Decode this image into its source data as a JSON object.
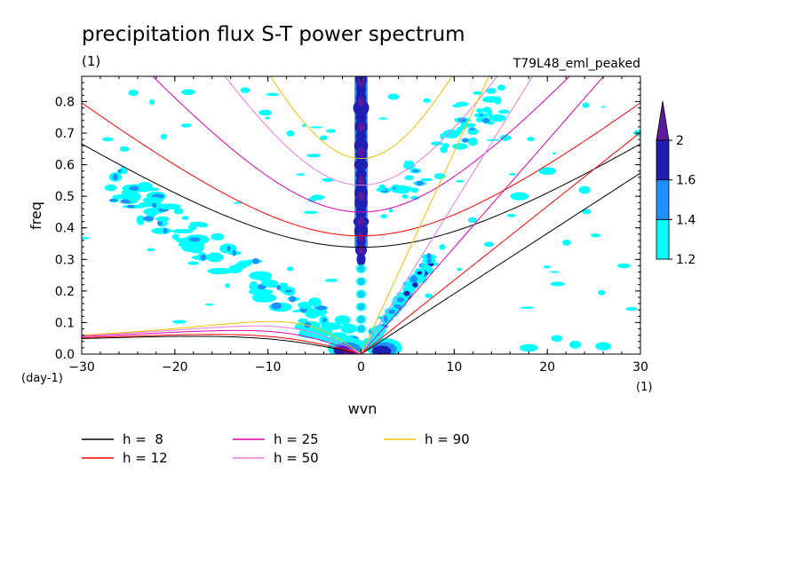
{
  "chart_data": {
    "type": "heatmap",
    "title": "precipitation flux S-T power spectrum",
    "units_left": "(1)",
    "units_right": "T79L48_eml_peaked",
    "xlabel": "wvn",
    "ylabel": "freq",
    "x_units": "(1)",
    "y_units": "(day-1)",
    "xlim": [
      -30,
      30
    ],
    "ylim": [
      0,
      0.88
    ],
    "x_ticks": [
      -30,
      -20,
      -10,
      0,
      10,
      20,
      30
    ],
    "x_tick_labels": [
      "−30",
      "−20",
      "−10",
      "0",
      "10",
      "20",
      "30"
    ],
    "y_ticks": [
      0,
      0.1,
      0.2,
      0.3,
      0.4,
      0.5,
      0.6,
      0.7,
      0.8
    ],
    "y_tick_labels": [
      "0.0",
      "0.1",
      "0.2",
      "0.3",
      "0.4",
      "0.5",
      "0.6",
      "0.7",
      "0.8"
    ],
    "colorbar": {
      "levels": [
        1.2,
        1.4,
        1.6,
        2
      ],
      "labels": [
        "1.2",
        "1.4",
        "1.6",
        "2"
      ],
      "colors": [
        "#00ffff",
        "#1e90ff",
        "#1f1fb4",
        "#5a1a9a"
      ]
    },
    "dispersion_curves": [
      {
        "label": "h =  8",
        "h": 8,
        "color": "#000000"
      },
      {
        "label": "h = 12",
        "h": 12,
        "color": "#ff0000"
      },
      {
        "label": "h = 25",
        "h": 25,
        "color": "#e000b0"
      },
      {
        "label": "h = 50",
        "h": 50,
        "color": "#e87be0"
      },
      {
        "label": "h = 90",
        "h": 90,
        "color": "#f0c000"
      }
    ],
    "spectral_peaks": [
      {
        "kind": "mjo_column",
        "wvn": 0,
        "freq_range": [
          0,
          0.88
        ],
        "level": 2
      },
      {
        "kind": "kelvin_band",
        "wvn_range": [
          0,
          9
        ],
        "freq_range": [
          0,
          0.35
        ],
        "level": 1.6
      },
      {
        "kind": "westward_band",
        "wvn_range": [
          -27,
          -1
        ],
        "freq_range": [
          0.02,
          0.55
        ],
        "level": 1.4
      },
      {
        "kind": "low_freq_blob",
        "wvn_range": [
          -3,
          3
        ],
        "freq_range": [
          0,
          0.05
        ],
        "level": 2
      }
    ]
  }
}
